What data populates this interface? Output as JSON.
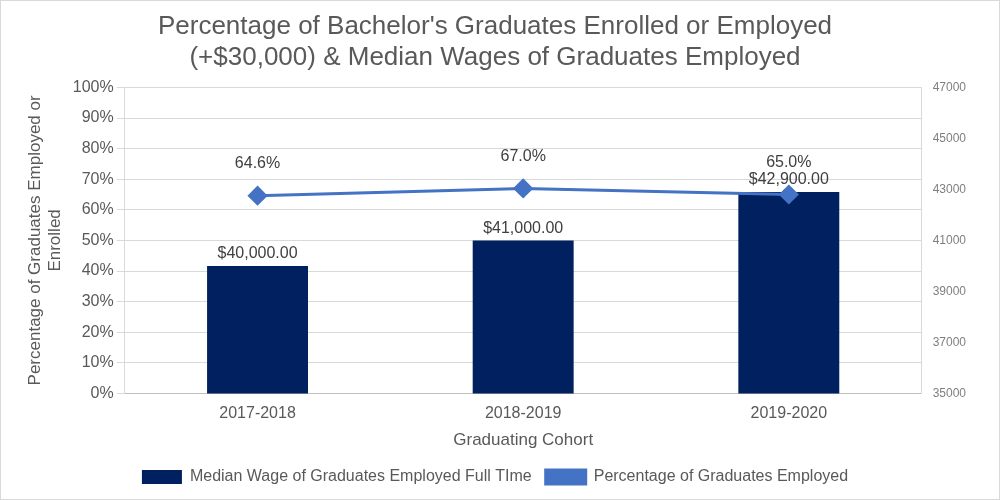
{
  "chart_data": {
    "type": "bar",
    "title": "Percentage of Bachelor's Graduates Enrolled or Employed (+$30,000) & Median Wages of Graduates Employed",
    "x_label": "Graduating Cohort",
    "y_label": "Percentage of Graduates Employed or Enrolled",
    "categories": [
      "2017-2018",
      "2018-2019",
      "2019-2020"
    ],
    "series": [
      {
        "name": "Median Wage of Graduates Employed Full TIme",
        "type": "bar",
        "color": "#002060",
        "axis": "y2",
        "values": [
          40000,
          41000,
          42900
        ],
        "value_labels": [
          "$40,000.00",
          "$41,000.00",
          "$42,900.00"
        ]
      },
      {
        "name": "Percentage of Graduates Employed",
        "type": "line",
        "color": "#4472C4",
        "marker": "diamond",
        "values": [
          64.6,
          67.0,
          65.0
        ],
        "value_labels": [
          "64.6%",
          "67.0%",
          "65.0%"
        ]
      }
    ],
    "ylim": [
      0,
      100
    ],
    "yticks": [
      {
        "value": 0,
        "label": "0%"
      },
      {
        "value": 10,
        "label": "10%"
      },
      {
        "value": 20,
        "label": "20%"
      },
      {
        "value": 30,
        "label": "30%"
      },
      {
        "value": 40,
        "label": "40%"
      },
      {
        "value": 50,
        "label": "50%"
      },
      {
        "value": 60,
        "label": "60%"
      },
      {
        "value": 70,
        "label": "70%"
      },
      {
        "value": 80,
        "label": "80%"
      },
      {
        "value": 90,
        "label": "90%"
      },
      {
        "value": 100,
        "label": "100%"
      }
    ],
    "y2lim": [
      35000,
      47000
    ],
    "y2ticks": [
      35000,
      37000,
      39000,
      41000,
      43000,
      45000,
      47000
    ],
    "grid": true,
    "legend": "bottom",
    "data_labels": true
  }
}
